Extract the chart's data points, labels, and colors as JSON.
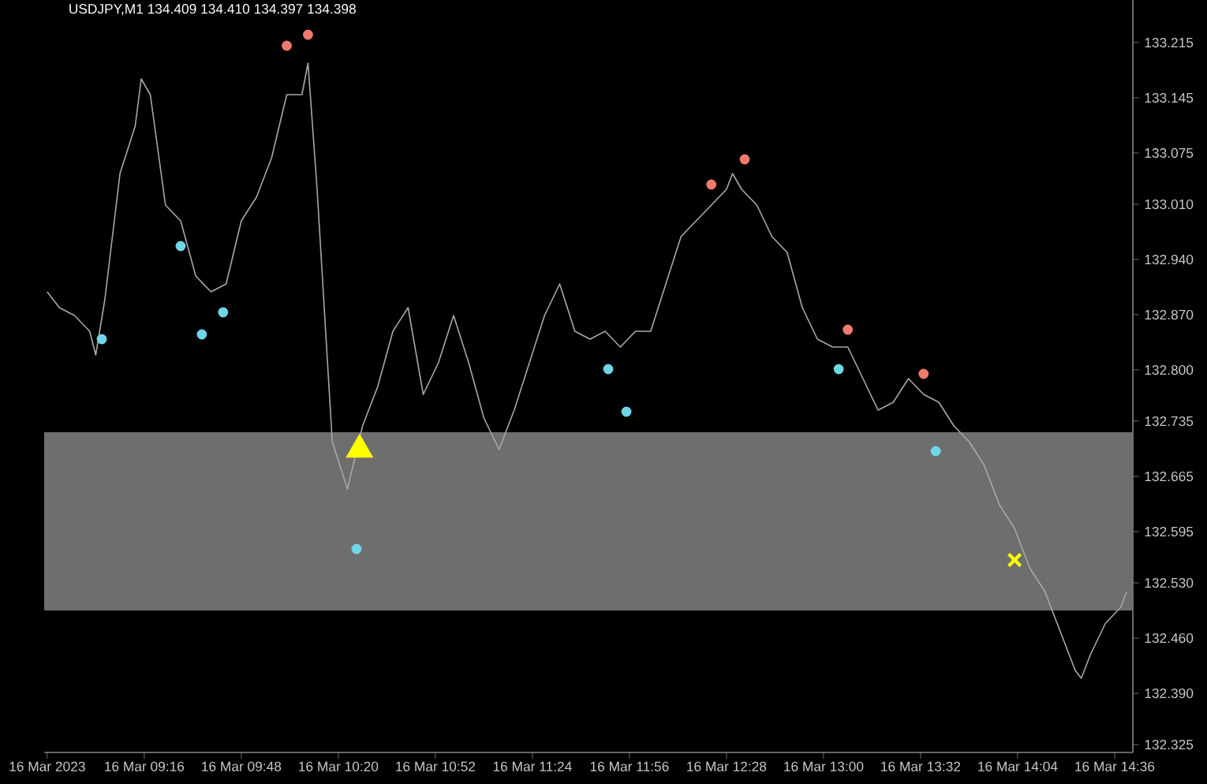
{
  "chart_data": {
    "type": "line",
    "annotations": [
      "USDJPY,M1  134.409 134.410 134.397 134.398"
    ],
    "xlim": [
      "2023-03-16T08:43",
      "2023-03-16T14:42"
    ],
    "xticks": [
      {
        "value": "2023-03-16T08:44",
        "label": "16 Mar 2023"
      },
      {
        "value": "2023-03-16T09:16",
        "label": "16 Mar 09:16"
      },
      {
        "value": "2023-03-16T09:48",
        "label": "16 Mar 09:48"
      },
      {
        "value": "2023-03-16T10:20",
        "label": "16 Mar 10:20"
      },
      {
        "value": "2023-03-16T10:52",
        "label": "16 Mar 10:52"
      },
      {
        "value": "2023-03-16T11:24",
        "label": "16 Mar 11:24"
      },
      {
        "value": "2023-03-16T11:56",
        "label": "16 Mar 11:56"
      },
      {
        "value": "2023-03-16T12:28",
        "label": "16 Mar 12:28"
      },
      {
        "value": "2023-03-16T13:00",
        "label": "16 Mar 13:00"
      },
      {
        "value": "2023-03-16T13:32",
        "label": "16 Mar 13:32"
      },
      {
        "value": "2023-03-16T14:04",
        "label": "16 Mar 14:04"
      },
      {
        "value": "2023-03-16T14:36",
        "label": "16 Mar 14:36"
      }
    ],
    "ylim": [
      132.315,
      133.269
    ],
    "yticks": [
      {
        "value": 133.215,
        "label": "133.215"
      },
      {
        "value": 133.145,
        "label": "133.145"
      },
      {
        "value": 133.075,
        "label": "133.075"
      },
      {
        "value": 133.01,
        "label": "133.010"
      },
      {
        "value": 132.94,
        "label": "132.940"
      },
      {
        "value": 132.87,
        "label": "132.870"
      },
      {
        "value": 132.8,
        "label": "132.800"
      },
      {
        "value": 132.735,
        "label": "132.735"
      },
      {
        "value": 132.665,
        "label": "132.665"
      },
      {
        "value": 132.595,
        "label": "132.595"
      },
      {
        "value": 132.53,
        "label": "132.530"
      },
      {
        "value": 132.46,
        "label": "132.460"
      },
      {
        "value": 132.39,
        "label": "132.390"
      },
      {
        "value": 132.325,
        "label": "132.325"
      }
    ],
    "bands": [
      {
        "axis": "y",
        "from": 132.495,
        "to": 132.721,
        "color": "#6e6e6e"
      }
    ],
    "series": [
      {
        "color": "#a8a8a8",
        "marker": "none",
        "x": [
          "2023-03-16T08:44",
          "2023-03-16T08:48",
          "2023-03-16T08:53",
          "2023-03-16T08:58",
          "2023-03-16T09:00",
          "2023-03-16T09:03",
          "2023-03-16T09:08",
          "2023-03-16T09:13",
          "2023-03-16T09:15",
          "2023-03-16T09:18",
          "2023-03-16T09:23",
          "2023-03-16T09:28",
          "2023-03-16T09:33",
          "2023-03-16T09:38",
          "2023-03-16T09:43",
          "2023-03-16T09:48",
          "2023-03-16T09:53",
          "2023-03-16T09:58",
          "2023-03-16T10:03",
          "2023-03-16T10:08",
          "2023-03-16T10:10",
          "2023-03-16T10:13",
          "2023-03-16T10:18",
          "2023-03-16T10:23",
          "2023-03-16T10:28",
          "2023-03-16T10:33",
          "2023-03-16T10:38",
          "2023-03-16T10:43",
          "2023-03-16T10:48",
          "2023-03-16T10:53",
          "2023-03-16T10:58",
          "2023-03-16T11:03",
          "2023-03-16T11:08",
          "2023-03-16T11:13",
          "2023-03-16T11:18",
          "2023-03-16T11:23",
          "2023-03-16T11:28",
          "2023-03-16T11:33",
          "2023-03-16T11:38",
          "2023-03-16T11:43",
          "2023-03-16T11:48",
          "2023-03-16T11:53",
          "2023-03-16T11:58",
          "2023-03-16T12:03",
          "2023-03-16T12:08",
          "2023-03-16T12:13",
          "2023-03-16T12:18",
          "2023-03-16T12:23",
          "2023-03-16T12:28",
          "2023-03-16T12:30",
          "2023-03-16T12:33",
          "2023-03-16T12:38",
          "2023-03-16T12:43",
          "2023-03-16T12:48",
          "2023-03-16T12:53",
          "2023-03-16T12:58",
          "2023-03-16T13:03",
          "2023-03-16T13:08",
          "2023-03-16T13:13",
          "2023-03-16T13:18",
          "2023-03-16T13:23",
          "2023-03-16T13:28",
          "2023-03-16T13:33",
          "2023-03-16T13:38",
          "2023-03-16T13:43",
          "2023-03-16T13:48",
          "2023-03-16T13:53",
          "2023-03-16T13:58",
          "2023-03-16T14:03",
          "2023-03-16T14:08",
          "2023-03-16T14:13",
          "2023-03-16T14:18",
          "2023-03-16T14:23",
          "2023-03-16T14:25",
          "2023-03-16T14:28",
          "2023-03-16T14:33",
          "2023-03-16T14:38",
          "2023-03-16T14:40"
        ],
        "values": [
          132.899,
          132.879,
          132.869,
          132.849,
          132.819,
          132.889,
          133.049,
          133.109,
          133.169,
          133.149,
          133.009,
          132.989,
          132.919,
          132.899,
          132.909,
          132.989,
          133.019,
          133.069,
          133.149,
          133.149,
          133.189,
          133.029,
          132.709,
          132.649,
          132.729,
          132.779,
          132.849,
          132.879,
          132.769,
          132.809,
          132.869,
          132.809,
          132.739,
          132.699,
          132.749,
          132.809,
          132.869,
          132.909,
          132.849,
          132.839,
          132.849,
          132.829,
          132.849,
          132.849,
          132.909,
          132.969,
          132.989,
          133.009,
          133.029,
          133.049,
          133.029,
          133.009,
          132.969,
          132.949,
          132.879,
          132.839,
          132.829,
          132.829,
          132.789,
          132.749,
          132.759,
          132.789,
          132.769,
          132.759,
          132.729,
          132.709,
          132.679,
          132.629,
          132.599,
          132.549,
          132.519,
          132.469,
          132.419,
          132.409,
          132.439,
          132.479,
          132.499,
          132.519
        ]
      },
      {
        "type": "scatter",
        "color": "#6fd6e8",
        "marker": "circle",
        "x": [
          "2023-03-16T09:02",
          "2023-03-16T09:28",
          "2023-03-16T09:35",
          "2023-03-16T09:42",
          "2023-03-16T10:26",
          "2023-03-16T11:49",
          "2023-03-16T11:55",
          "2023-03-16T13:05",
          "2023-03-16T13:37"
        ],
        "values": [
          132.839,
          132.957,
          132.845,
          132.873,
          132.573,
          132.801,
          132.747,
          132.801,
          132.697
        ]
      },
      {
        "type": "scatter",
        "color": "#f07a6e",
        "marker": "circle",
        "x": [
          "2023-03-16T10:03",
          "2023-03-16T10:10",
          "2023-03-16T12:23",
          "2023-03-16T12:34",
          "2023-03-16T13:08",
          "2023-03-16T13:33"
        ],
        "values": [
          133.211,
          133.225,
          133.035,
          133.067,
          132.851,
          132.795
        ]
      },
      {
        "type": "scatter",
        "color": "#ffff00",
        "marker": "triangle",
        "x": [
          "2023-03-16T10:27"
        ],
        "values": [
          132.699
        ]
      },
      {
        "type": "scatter",
        "color": "#ffff00",
        "marker": "cross",
        "x": [
          "2023-03-16T14:03"
        ],
        "values": [
          132.559
        ]
      }
    ]
  }
}
